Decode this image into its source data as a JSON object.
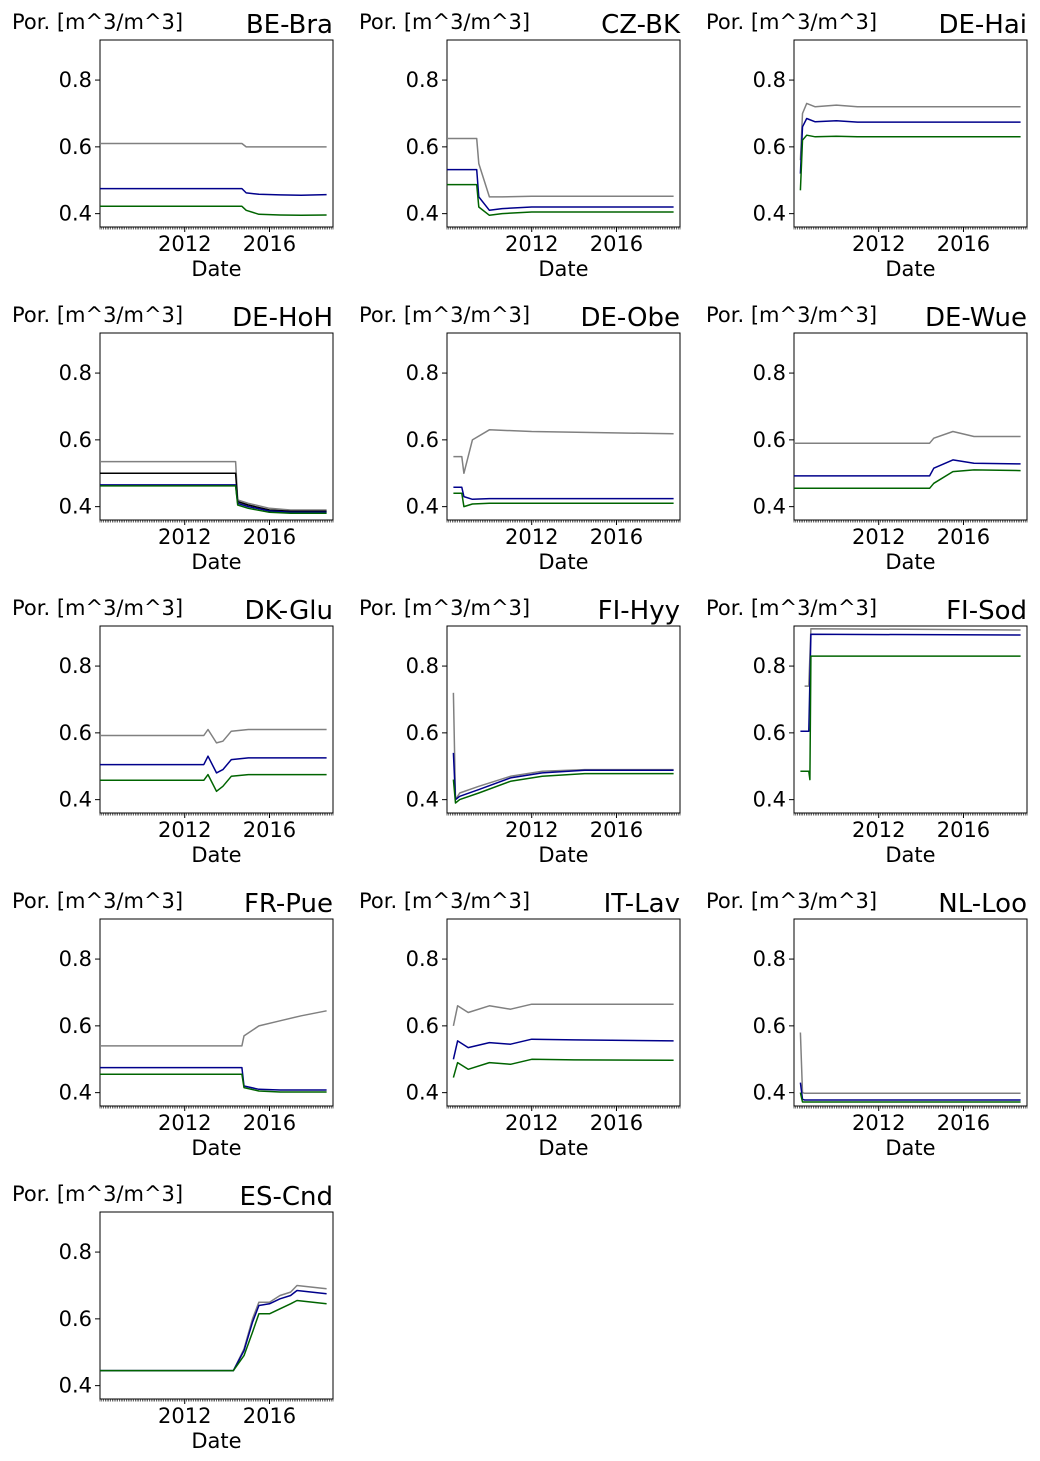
{
  "chart_data": [
    {
      "type": "line",
      "title": "BE-Bra",
      "ylabel": "Por. [m^3/m^3]",
      "xlabel": "Date",
      "ylim": [
        0.36,
        0.92
      ],
      "yticks": [
        "0.4",
        "0.6",
        "0.8"
      ],
      "xticks": [
        "2012",
        "2016"
      ],
      "xlim": [
        2008.0,
        2019.0
      ],
      "series": [
        {
          "color": "#808080",
          "x": [
            2008.0,
            2014.7,
            2014.9,
            2015.5,
            2016.5,
            2017.5,
            2018.7
          ],
          "y": [
            0.61,
            0.61,
            0.6,
            0.6,
            0.6,
            0.6,
            0.6
          ]
        },
        {
          "color": "#00008b",
          "x": [
            2008.0,
            2014.7,
            2014.9,
            2015.5,
            2016.5,
            2017.5,
            2018.7
          ],
          "y": [
            0.475,
            0.475,
            0.462,
            0.458,
            0.456,
            0.455,
            0.457
          ]
        },
        {
          "color": "#006400",
          "x": [
            2008.0,
            2014.7,
            2014.9,
            2015.5,
            2016.5,
            2017.5,
            2018.7
          ],
          "y": [
            0.422,
            0.422,
            0.41,
            0.398,
            0.396,
            0.395,
            0.396
          ]
        }
      ]
    },
    {
      "type": "line",
      "title": "CZ-BK",
      "ylabel": "Por. [m^3/m^3]",
      "xlabel": "Date",
      "ylim": [
        0.36,
        0.92
      ],
      "yticks": [
        "0.4",
        "0.6",
        "0.8"
      ],
      "xticks": [
        "2012",
        "2016"
      ],
      "xlim": [
        2008.0,
        2019.0
      ],
      "series": [
        {
          "color": "#808080",
          "x": [
            2008.0,
            2009.4,
            2009.5,
            2010.0,
            2010.6,
            2012.0,
            2018.7
          ],
          "y": [
            0.625,
            0.625,
            0.55,
            0.45,
            0.45,
            0.452,
            0.452
          ]
        },
        {
          "color": "#00008b",
          "x": [
            2008.0,
            2009.4,
            2009.5,
            2010.0,
            2010.6,
            2012.0,
            2018.7
          ],
          "y": [
            0.532,
            0.532,
            0.45,
            0.41,
            0.415,
            0.42,
            0.42
          ]
        },
        {
          "color": "#006400",
          "x": [
            2008.0,
            2009.4,
            2009.5,
            2010.0,
            2010.6,
            2012.0,
            2018.7
          ],
          "y": [
            0.487,
            0.487,
            0.42,
            0.395,
            0.4,
            0.405,
            0.405
          ]
        }
      ]
    },
    {
      "type": "line",
      "title": "DE-Hai",
      "ylabel": "Por. [m^3/m^3]",
      "xlabel": "Date",
      "ylim": [
        0.36,
        0.92
      ],
      "yticks": [
        "0.4",
        "0.6",
        "0.8"
      ],
      "xticks": [
        "2012",
        "2016"
      ],
      "xlim": [
        2008.0,
        2019.0
      ],
      "series": [
        {
          "color": "#808080",
          "x": [
            2008.3,
            2008.4,
            2008.6,
            2009.0,
            2010.0,
            2011.0,
            2018.7
          ],
          "y": [
            0.56,
            0.7,
            0.73,
            0.72,
            0.725,
            0.72,
            0.72
          ]
        },
        {
          "color": "#00008b",
          "x": [
            2008.3,
            2008.4,
            2008.6,
            2009.0,
            2010.0,
            2011.0,
            2018.7
          ],
          "y": [
            0.52,
            0.66,
            0.685,
            0.675,
            0.678,
            0.674,
            0.674
          ]
        },
        {
          "color": "#006400",
          "x": [
            2008.3,
            2008.4,
            2008.6,
            2009.0,
            2010.0,
            2011.0,
            2018.7
          ],
          "y": [
            0.47,
            0.62,
            0.635,
            0.63,
            0.632,
            0.63,
            0.63
          ]
        }
      ]
    },
    {
      "type": "line",
      "title": "DE-HoH",
      "ylabel": "Por. [m^3/m^3]",
      "xlabel": "Date",
      "ylim": [
        0.36,
        0.92
      ],
      "yticks": [
        "0.4",
        "0.6",
        "0.8"
      ],
      "xticks": [
        "2012",
        "2016"
      ],
      "xlim": [
        2008.0,
        2019.0
      ],
      "series": [
        {
          "color": "#808080",
          "x": [
            2008.0,
            2014.4,
            2014.5,
            2015.0,
            2016.0,
            2017.0,
            2018.7
          ],
          "y": [
            0.535,
            0.535,
            0.42,
            0.41,
            0.395,
            0.39,
            0.39
          ]
        },
        {
          "color": "#000000",
          "x": [
            2008.0,
            2014.4,
            2014.5,
            2015.0,
            2016.0,
            2017.0,
            2018.7
          ],
          "y": [
            0.5,
            0.5,
            0.415,
            0.405,
            0.39,
            0.386,
            0.386
          ]
        },
        {
          "color": "#00008b",
          "x": [
            2008.0,
            2014.4,
            2014.5,
            2015.0,
            2016.0,
            2017.0,
            2018.7
          ],
          "y": [
            0.465,
            0.465,
            0.41,
            0.4,
            0.387,
            0.383,
            0.383
          ]
        },
        {
          "color": "#006400",
          "x": [
            2008.0,
            2014.4,
            2014.5,
            2015.0,
            2016.0,
            2017.0,
            2018.7
          ],
          "y": [
            0.462,
            0.462,
            0.405,
            0.395,
            0.383,
            0.38,
            0.38
          ]
        }
      ]
    },
    {
      "type": "line",
      "title": "DE-Obe",
      "ylabel": "Por. [m^3/m^3]",
      "xlabel": "Date",
      "ylim": [
        0.36,
        0.92
      ],
      "yticks": [
        "0.4",
        "0.6",
        "0.8"
      ],
      "xticks": [
        "2012",
        "2016"
      ],
      "xlim": [
        2008.0,
        2019.0
      ],
      "series": [
        {
          "color": "#808080",
          "x": [
            2008.3,
            2008.7,
            2008.8,
            2009.2,
            2010.0,
            2012.0,
            2018.7
          ],
          "y": [
            0.55,
            0.55,
            0.5,
            0.6,
            0.63,
            0.625,
            0.618
          ]
        },
        {
          "color": "#00008b",
          "x": [
            2008.3,
            2008.7,
            2008.8,
            2009.2,
            2010.0,
            2012.0,
            2018.7
          ],
          "y": [
            0.458,
            0.458,
            0.43,
            0.422,
            0.424,
            0.424,
            0.424
          ]
        },
        {
          "color": "#006400",
          "x": [
            2008.3,
            2008.7,
            2008.8,
            2009.2,
            2010.0,
            2012.0,
            2018.7
          ],
          "y": [
            0.44,
            0.44,
            0.4,
            0.408,
            0.41,
            0.41,
            0.41
          ]
        }
      ]
    },
    {
      "type": "line",
      "title": "DE-Wue",
      "ylabel": "Por. [m^3/m^3]",
      "xlabel": "Date",
      "ylim": [
        0.36,
        0.92
      ],
      "yticks": [
        "0.4",
        "0.6",
        "0.8"
      ],
      "xticks": [
        "2012",
        "2016"
      ],
      "xlim": [
        2008.0,
        2019.0
      ],
      "series": [
        {
          "color": "#808080",
          "x": [
            2008.0,
            2014.4,
            2014.6,
            2015.5,
            2016.5,
            2018.7
          ],
          "y": [
            0.59,
            0.59,
            0.605,
            0.625,
            0.61,
            0.61
          ]
        },
        {
          "color": "#00008b",
          "x": [
            2008.0,
            2014.4,
            2014.6,
            2015.5,
            2016.5,
            2018.7
          ],
          "y": [
            0.492,
            0.492,
            0.515,
            0.54,
            0.53,
            0.528
          ]
        },
        {
          "color": "#006400",
          "x": [
            2008.0,
            2014.4,
            2014.6,
            2015.5,
            2016.5,
            2018.7
          ],
          "y": [
            0.455,
            0.455,
            0.47,
            0.505,
            0.51,
            0.508
          ]
        }
      ]
    },
    {
      "type": "line",
      "title": "DK-Glu",
      "ylabel": "Por. [m^3/m^3]",
      "xlabel": "Date",
      "ylim": [
        0.36,
        0.92
      ],
      "yticks": [
        "0.4",
        "0.6",
        "0.8"
      ],
      "xticks": [
        "2012",
        "2016"
      ],
      "xlim": [
        2008.0,
        2019.0
      ],
      "series": [
        {
          "color": "#808080",
          "x": [
            2008.0,
            2012.9,
            2013.1,
            2013.5,
            2013.8,
            2014.2,
            2015.0,
            2018.7
          ],
          "y": [
            0.592,
            0.592,
            0.61,
            0.57,
            0.575,
            0.605,
            0.61,
            0.61
          ]
        },
        {
          "color": "#00008b",
          "x": [
            2008.0,
            2012.9,
            2013.1,
            2013.5,
            2013.8,
            2014.2,
            2015.0,
            2018.7
          ],
          "y": [
            0.505,
            0.505,
            0.53,
            0.48,
            0.49,
            0.52,
            0.525,
            0.525
          ]
        },
        {
          "color": "#006400",
          "x": [
            2008.0,
            2012.9,
            2013.1,
            2013.5,
            2013.8,
            2014.2,
            2015.0,
            2018.7
          ],
          "y": [
            0.458,
            0.458,
            0.475,
            0.425,
            0.44,
            0.47,
            0.475,
            0.475
          ]
        }
      ]
    },
    {
      "type": "line",
      "title": "FI-Hyy",
      "ylabel": "Por. [m^3/m^3]",
      "xlabel": "Date",
      "ylim": [
        0.36,
        0.92
      ],
      "yticks": [
        "0.4",
        "0.6",
        "0.8"
      ],
      "xticks": [
        "2012",
        "2016"
      ],
      "xlim": [
        2008.0,
        2019.0
      ],
      "series": [
        {
          "color": "#808080",
          "x": [
            2008.3,
            2008.4,
            2008.6,
            2009.5,
            2011.0,
            2012.5,
            2014.5,
            2018.7
          ],
          "y": [
            0.72,
            0.4,
            0.42,
            0.44,
            0.47,
            0.485,
            0.49,
            0.49
          ]
        },
        {
          "color": "#00008b",
          "x": [
            2008.3,
            2008.4,
            2008.6,
            2009.5,
            2011.0,
            2012.5,
            2014.5,
            2018.7
          ],
          "y": [
            0.54,
            0.4,
            0.41,
            0.43,
            0.465,
            0.48,
            0.488,
            0.488
          ]
        },
        {
          "color": "#006400",
          "x": [
            2008.3,
            2008.4,
            2008.6,
            2009.5,
            2011.0,
            2012.5,
            2014.5,
            2018.7
          ],
          "y": [
            0.46,
            0.39,
            0.4,
            0.42,
            0.455,
            0.47,
            0.478,
            0.478
          ]
        }
      ]
    },
    {
      "type": "line",
      "title": "FI-Sod",
      "ylabel": "Por. [m^3/m^3]",
      "xlabel": "Date",
      "ylim": [
        0.36,
        0.92
      ],
      "yticks": [
        "0.4",
        "0.6",
        "0.8"
      ],
      "xticks": [
        "2012",
        "2016"
      ],
      "xlim": [
        2008.0,
        2019.0
      ],
      "series": [
        {
          "color": "#808080",
          "x": [
            2008.5,
            2008.7,
            2008.8,
            2018.7
          ],
          "y": [
            0.74,
            0.74,
            0.912,
            0.908
          ]
        },
        {
          "color": "#00008b",
          "x": [
            2008.3,
            2008.7,
            2008.8,
            2018.7
          ],
          "y": [
            0.605,
            0.605,
            0.895,
            0.893
          ]
        },
        {
          "color": "#006400",
          "x": [
            2008.3,
            2008.7,
            2008.75,
            2008.8,
            2018.7
          ],
          "y": [
            0.485,
            0.485,
            0.46,
            0.83,
            0.83
          ]
        }
      ]
    },
    {
      "type": "line",
      "title": "FR-Pue",
      "ylabel": "Por. [m^3/m^3]",
      "xlabel": "Date",
      "ylim": [
        0.36,
        0.92
      ],
      "yticks": [
        "0.4",
        "0.6",
        "0.8"
      ],
      "xticks": [
        "2012",
        "2016"
      ],
      "xlim": [
        2008.0,
        2019.0
      ],
      "series": [
        {
          "color": "#808080",
          "x": [
            2008.0,
            2014.7,
            2014.8,
            2015.5,
            2016.5,
            2017.5,
            2018.7
          ],
          "y": [
            0.54,
            0.54,
            0.57,
            0.6,
            0.615,
            0.63,
            0.645
          ]
        },
        {
          "color": "#00008b",
          "x": [
            2008.0,
            2014.7,
            2014.8,
            2015.5,
            2016.5,
            2017.5,
            2018.7
          ],
          "y": [
            0.475,
            0.475,
            0.42,
            0.41,
            0.408,
            0.408,
            0.408
          ]
        },
        {
          "color": "#006400",
          "x": [
            2008.0,
            2014.7,
            2014.8,
            2015.5,
            2016.5,
            2017.5,
            2018.7
          ],
          "y": [
            0.455,
            0.455,
            0.415,
            0.405,
            0.402,
            0.402,
            0.402
          ]
        }
      ]
    },
    {
      "type": "line",
      "title": "IT-Lav",
      "ylabel": "Por. [m^3/m^3]",
      "xlabel": "Date",
      "ylim": [
        0.36,
        0.92
      ],
      "yticks": [
        "0.4",
        "0.6",
        "0.8"
      ],
      "xticks": [
        "2012",
        "2016"
      ],
      "xlim": [
        2008.0,
        2019.0
      ],
      "series": [
        {
          "color": "#808080",
          "x": [
            2008.3,
            2008.5,
            2009.0,
            2010.0,
            2011.0,
            2012.0,
            2014.0,
            2018.7
          ],
          "y": [
            0.6,
            0.66,
            0.64,
            0.66,
            0.65,
            0.665,
            0.665,
            0.665
          ]
        },
        {
          "color": "#00008b",
          "x": [
            2008.3,
            2008.5,
            2009.0,
            2010.0,
            2011.0,
            2012.0,
            2014.0,
            2018.7
          ],
          "y": [
            0.5,
            0.555,
            0.535,
            0.55,
            0.545,
            0.56,
            0.558,
            0.555
          ]
        },
        {
          "color": "#006400",
          "x": [
            2008.3,
            2008.5,
            2009.0,
            2010.0,
            2011.0,
            2012.0,
            2014.0,
            2018.7
          ],
          "y": [
            0.445,
            0.49,
            0.47,
            0.49,
            0.485,
            0.5,
            0.498,
            0.497
          ]
        }
      ]
    },
    {
      "type": "line",
      "title": "NL-Loo",
      "ylabel": "Por. [m^3/m^3]",
      "xlabel": "Date",
      "ylim": [
        0.36,
        0.92
      ],
      "yticks": [
        "0.4",
        "0.6",
        "0.8"
      ],
      "xticks": [
        "2012",
        "2016"
      ],
      "xlim": [
        2008.0,
        2019.0
      ],
      "series": [
        {
          "color": "#808080",
          "x": [
            2008.3,
            2008.4,
            2008.5,
            2018.7
          ],
          "y": [
            0.58,
            0.4,
            0.398,
            0.398
          ]
        },
        {
          "color": "#00008b",
          "x": [
            2008.3,
            2008.4,
            2008.5,
            2018.7
          ],
          "y": [
            0.43,
            0.38,
            0.378,
            0.378
          ]
        },
        {
          "color": "#006400",
          "x": [
            2008.3,
            2008.4,
            2008.5,
            2018.7
          ],
          "y": [
            0.4,
            0.372,
            0.372,
            0.372
          ]
        }
      ]
    },
    {
      "type": "line",
      "title": "ES-Cnd",
      "ylabel": "Por. [m^3/m^3]",
      "xlabel": "Date",
      "ylim": [
        0.36,
        0.92
      ],
      "yticks": [
        "0.4",
        "0.6",
        "0.8"
      ],
      "xticks": [
        "2012",
        "2016"
      ],
      "xlim": [
        2008.0,
        2019.0
      ],
      "series": [
        {
          "color": "#808080",
          "x": [
            2008.0,
            2014.3,
            2014.8,
            2015.2,
            2015.5,
            2016.0,
            2016.5,
            2017.0,
            2017.3,
            2018.7
          ],
          "y": [
            0.445,
            0.445,
            0.51,
            0.6,
            0.65,
            0.65,
            0.67,
            0.68,
            0.7,
            0.69
          ]
        },
        {
          "color": "#00008b",
          "x": [
            2008.0,
            2014.3,
            2014.8,
            2015.2,
            2015.5,
            2016.0,
            2016.5,
            2017.0,
            2017.3,
            2018.7
          ],
          "y": [
            0.445,
            0.445,
            0.505,
            0.59,
            0.64,
            0.645,
            0.66,
            0.67,
            0.685,
            0.675
          ]
        },
        {
          "color": "#006400",
          "x": [
            2008.0,
            2014.3,
            2014.8,
            2015.2,
            2015.5,
            2016.0,
            2016.5,
            2017.0,
            2017.3,
            2018.7
          ],
          "y": [
            0.445,
            0.445,
            0.49,
            0.56,
            0.615,
            0.615,
            0.63,
            0.645,
            0.655,
            0.645
          ]
        }
      ]
    }
  ]
}
